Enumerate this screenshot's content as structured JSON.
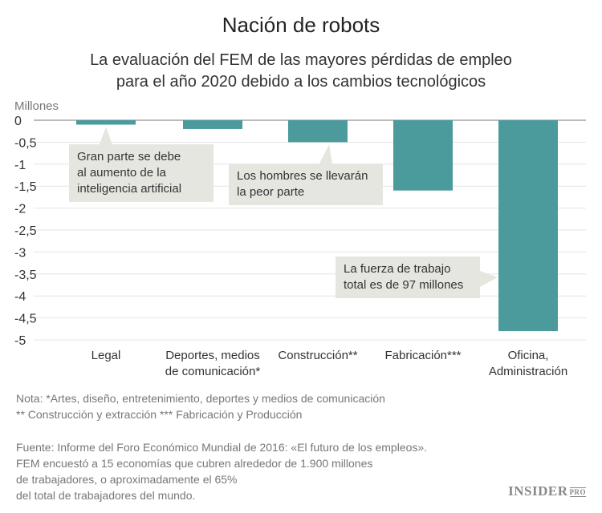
{
  "title": "Nación de robots",
  "subtitle_lines": [
    "La evaluación del FEM de las mayores pérdidas de empleo",
    "para el año 2020 debido a los cambios tecnológicos"
  ],
  "chart_data": {
    "type": "bar",
    "ylabel": "Millones",
    "ylim": [
      -5,
      0
    ],
    "yticks": [
      0,
      -0.5,
      -1,
      -1.5,
      -2,
      -2.5,
      -3,
      -3.5,
      -4,
      -4.5,
      -5
    ],
    "ytick_labels": [
      "0",
      "-0,5",
      "-1",
      "-1,5",
      "-2",
      "-2,5",
      "-3",
      "-3,5",
      "-4",
      "-4,5",
      "-5"
    ],
    "categories": [
      [
        "Legal"
      ],
      [
        "Deportes, medios",
        "de comunicación*"
      ],
      [
        "Construcción**"
      ],
      [
        "Fabricación***"
      ],
      [
        "Oficina,",
        "Administración"
      ]
    ],
    "values": [
      -0.1,
      -0.2,
      -0.5,
      -1.6,
      -4.8
    ],
    "grid": true,
    "bar_color": "#4b9b9d",
    "annotations": [
      [
        "Gran parte se debe",
        "al aumento de la",
        "inteligencia artificial"
      ],
      [
        "Los hombres se llevarán",
        "la peor parte"
      ],
      [
        "La fuerza de trabajo",
        "total es de 97 millones"
      ]
    ]
  },
  "notes": [
    "Nota: *Artes, diseño, entretenimiento, deportes y medios de comunicación",
    "** Construcción y extracción  *** Fabricación y Producción"
  ],
  "source": [
    "Fuente: Informe del Foro Económico Mundial de 2016: «El futuro de los empleos».",
    "FEM encuestó a 15 economías que cubren alrededor de 1.900 millones",
    "de trabajadores, o aproximadamente el 65%",
    "del total de trabajadores del mundo."
  ],
  "logo": {
    "main": "INSIDER",
    "small": "PRO"
  }
}
